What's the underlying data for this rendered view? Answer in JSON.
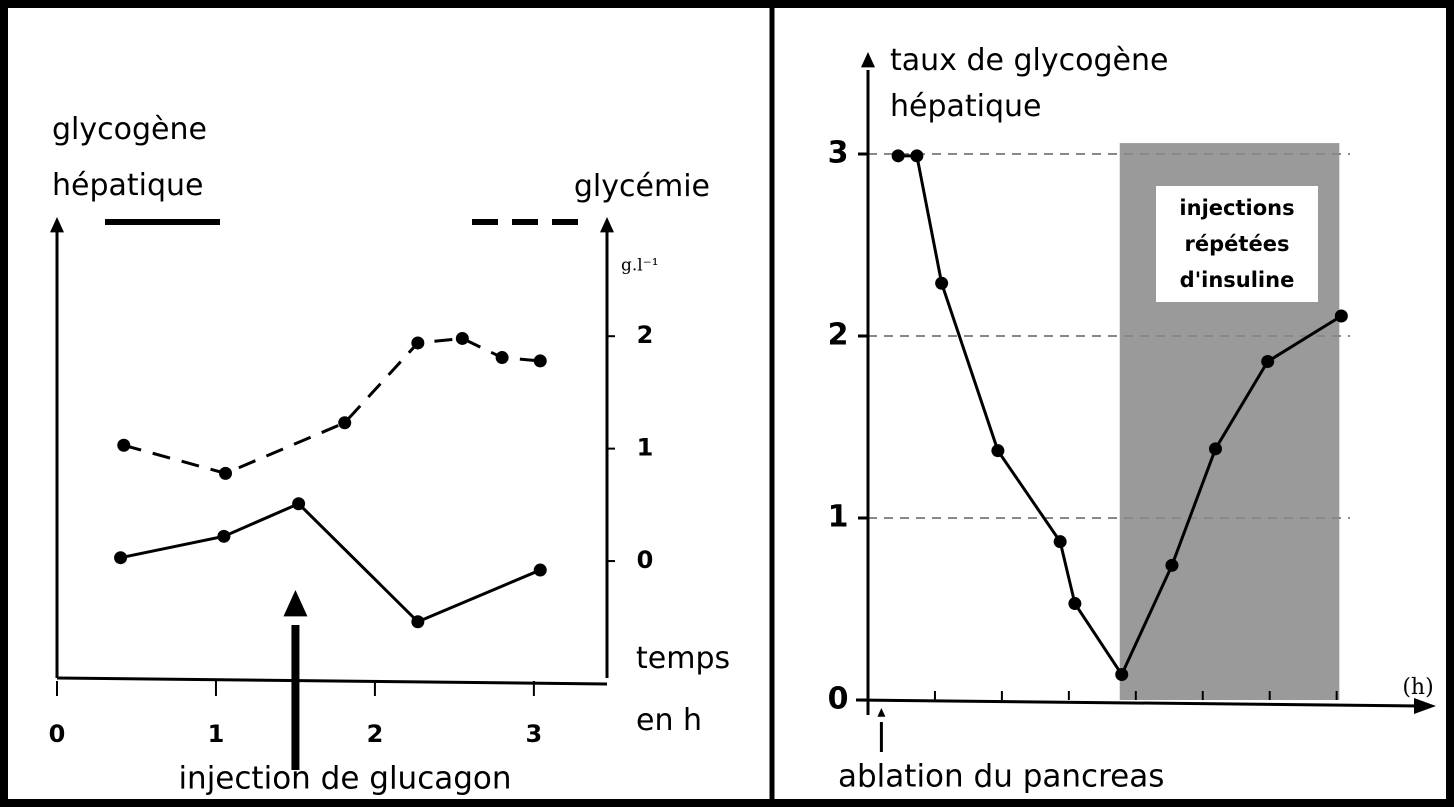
{
  "chart_data": [
    {
      "type": "line",
      "x_label": "temps en h",
      "xlim": [
        0,
        3.46
      ],
      "xticks": [
        0,
        1,
        2,
        3
      ],
      "ylim": [
        -1.04,
        2.9
      ],
      "y2lim": [
        -1.04,
        2.9
      ],
      "y2ticks": [
        0,
        1,
        2
      ],
      "y2_unit": "g.l⁻¹",
      "series": [
        {
          "name": "glycogène hépatique",
          "color": "#000000",
          "line_style": "solid",
          "x": [
            0.4,
            1.05,
            1.52,
            2.27,
            3.04
          ],
          "values": [
            0.03,
            0.22,
            0.51,
            -0.54,
            -0.08
          ]
        },
        {
          "name": "glycémie",
          "color": "#000000",
          "line_style": "dashed",
          "axis": "y2",
          "x": [
            0.42,
            1.06,
            1.81,
            2.27,
            2.55,
            2.8,
            3.04
          ],
          "values": [
            1.03,
            0.78,
            1.23,
            1.94,
            1.98,
            1.81,
            1.78
          ]
        }
      ],
      "annotations": [
        {
          "text": "injection de glucagon",
          "x": 1.5
        }
      ]
    },
    {
      "type": "line",
      "y_label": "taux de glycogène hépatique",
      "x_label": "(h)",
      "xlim": [
        0,
        8.2
      ],
      "xticks": [
        1,
        2,
        3,
        4,
        5,
        6,
        7
      ],
      "ylim": [
        0,
        3.5
      ],
      "yticks": [
        0,
        1,
        2,
        3
      ],
      "grid": true,
      "series": [
        {
          "color": "#000000",
          "line_style": "solid",
          "x": [
            0.45,
            0.73,
            1.1,
            1.94,
            2.87,
            3.09,
            3.79,
            4.54,
            5.19,
            5.97,
            7.07
          ],
          "values": [
            2.99,
            2.99,
            2.29,
            1.37,
            0.87,
            0.53,
            0.14,
            0.74,
            1.38,
            1.86,
            2.11
          ]
        }
      ],
      "shaded_region": {
        "x": [
          3.76,
          7.04
        ],
        "y_top": 3.06,
        "color": "#9a9a9a",
        "label": "injections répétées d'insuline"
      },
      "annotations": [
        {
          "text": "ablation du pancreas",
          "x": 0.2
        }
      ]
    }
  ]
}
